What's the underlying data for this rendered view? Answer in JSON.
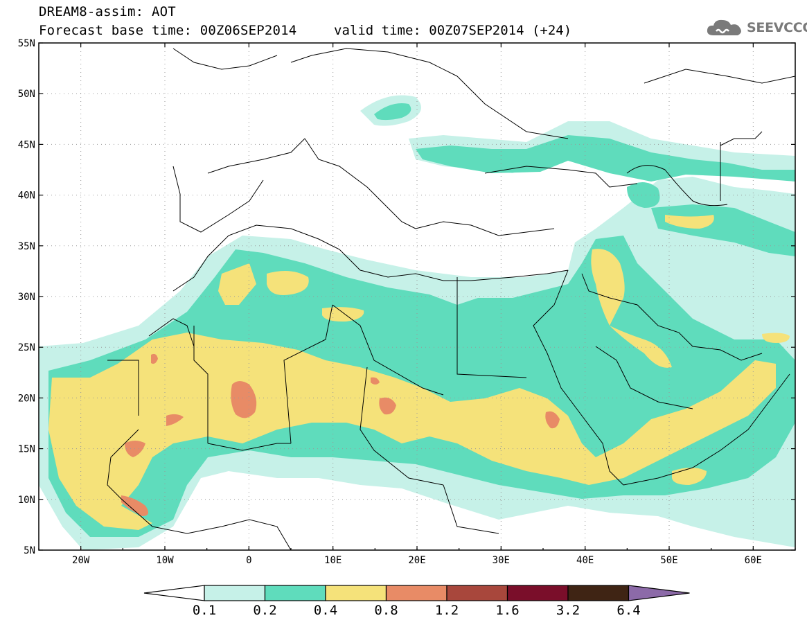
{
  "header": {
    "title": "DREAM8-assim: AOT",
    "base_time": "Forecast base time: 00Z06SEP2014",
    "valid_time": "valid time: 00Z07SEP2014 (+24)"
  },
  "logo": {
    "text": "SEEVCCC",
    "icon": "cloud-icon"
  },
  "map": {
    "lat_labels": [
      "55N",
      "50N",
      "45N",
      "40N",
      "35N",
      "30N",
      "25N",
      "20N",
      "15N",
      "10N",
      "5N"
    ],
    "lon_labels": [
      "20W",
      "10W",
      "0",
      "10E",
      "20E",
      "30E",
      "40E",
      "50E",
      "60E"
    ],
    "lat_range": [
      5,
      55
    ],
    "lon_range": [
      -25,
      65
    ],
    "variable": "AOT",
    "grid": "dotted"
  },
  "colorbar": {
    "labels": [
      "0.1",
      "0.2",
      "0.4",
      "0.8",
      "1.2",
      "1.6",
      "3.2",
      "6.4"
    ],
    "colors": [
      "#ffffff",
      "#c6f1e8",
      "#5fdcbc",
      "#f5e27a",
      "#e88b66",
      "#a8473c",
      "#7a0e2a",
      "#3f2414",
      "#8c6aa8"
    ]
  },
  "palette": {
    "c1": "#c6f1e8",
    "c2": "#5fdcbc",
    "c3": "#f5e27a",
    "c4": "#e88b66"
  }
}
